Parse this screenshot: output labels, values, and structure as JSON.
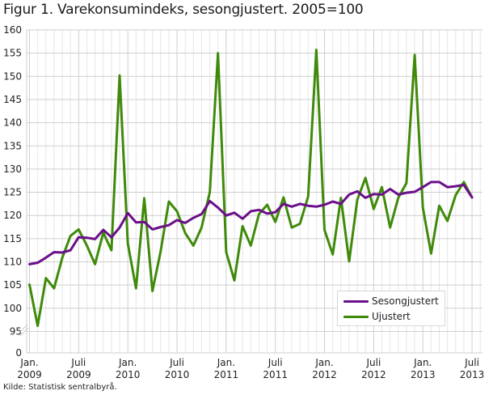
{
  "title": "Figur 1. Varekonsumindeks, sesongjustert. 2005=100",
  "source": "Kilde: Statistisk sentralbyrå.",
  "colors": {
    "sesongjustert": "#6b0f8a",
    "ujustert": "#3f8a0a",
    "grid_major": "#cfcfcf",
    "grid_minor": "#e6e6e6"
  },
  "legend": {
    "items": [
      {
        "label": "Sesongjustert",
        "color": "#6b0f8a"
      },
      {
        "label": "Ujustert",
        "color": "#3f8a0a"
      }
    ]
  },
  "chart_data": {
    "type": "line",
    "title": "Figur 1. Varekonsumindeks, sesongjustert. 2005=100",
    "xlabel": "",
    "ylabel": "",
    "ylim": [
      0,
      160
    ],
    "y_axis_break": [
      0,
      95
    ],
    "yticks": [
      0,
      95,
      100,
      105,
      110,
      115,
      120,
      125,
      130,
      135,
      140,
      145,
      150,
      155,
      160
    ],
    "x_tick_labels": [
      {
        "index": 0,
        "line1": "Jan.",
        "line2": "2009"
      },
      {
        "index": 6,
        "line1": "Juli",
        "line2": "2009"
      },
      {
        "index": 12,
        "line1": "Jan.",
        "line2": "2010"
      },
      {
        "index": 18,
        "line1": "Juli",
        "line2": "2010"
      },
      {
        "index": 24,
        "line1": "Jan.",
        "line2": "2011"
      },
      {
        "index": 30,
        "line1": "Juli",
        "line2": "2011"
      },
      {
        "index": 36,
        "line1": "Jan.",
        "line2": "2012"
      },
      {
        "index": 42,
        "line1": "Juli",
        "line2": "2012"
      },
      {
        "index": 48,
        "line1": "Jan.",
        "line2": "2013"
      },
      {
        "index": 54,
        "line1": "Juli",
        "line2": "2013"
      }
    ],
    "grid": true,
    "legend_position": "lower right",
    "x": [
      "2009-01",
      "2009-02",
      "2009-03",
      "2009-04",
      "2009-05",
      "2009-06",
      "2009-07",
      "2009-08",
      "2009-09",
      "2009-10",
      "2009-11",
      "2009-12",
      "2010-01",
      "2010-02",
      "2010-03",
      "2010-04",
      "2010-05",
      "2010-06",
      "2010-07",
      "2010-08",
      "2010-09",
      "2010-10",
      "2010-11",
      "2010-12",
      "2011-01",
      "2011-02",
      "2011-03",
      "2011-04",
      "2011-05",
      "2011-06",
      "2011-07",
      "2011-08",
      "2011-09",
      "2011-10",
      "2011-11",
      "2011-12",
      "2012-01",
      "2012-02",
      "2012-03",
      "2012-04",
      "2012-05",
      "2012-06",
      "2012-07",
      "2012-08",
      "2012-09",
      "2012-10",
      "2012-11",
      "2012-12",
      "2013-01",
      "2013-02",
      "2013-03",
      "2013-04",
      "2013-05",
      "2013-06",
      "2013-07"
    ],
    "series": [
      {
        "name": "Sesongjustert",
        "color": "#6b0f8a",
        "values": [
          109.5,
          109.8,
          110.9,
          112.1,
          112.0,
          112.5,
          115.3,
          115.2,
          114.9,
          116.9,
          115.3,
          117.4,
          120.5,
          118.5,
          118.6,
          117.0,
          117.5,
          117.9,
          119.0,
          118.4,
          119.5,
          120.3,
          123.1,
          121.7,
          120.0,
          120.6,
          119.3,
          120.9,
          121.2,
          120.4,
          120.7,
          122.5,
          121.9,
          122.5,
          122.1,
          121.9,
          122.3,
          123.0,
          122.5,
          124.5,
          125.2,
          123.8,
          124.6,
          124.5,
          125.7,
          124.5,
          124.9,
          125.1,
          126.1,
          127.2,
          127.2,
          126.1,
          126.3,
          126.6,
          123.9
        ]
      },
      {
        "name": "Ujustert",
        "color": "#3f8a0a",
        "values": [
          105.1,
          96.2,
          106.5,
          104.3,
          110.9,
          115.6,
          117.0,
          113.5,
          109.5,
          116.3,
          112.5,
          150.2,
          113.9,
          104.3,
          123.7,
          103.7,
          112.2,
          123.0,
          120.9,
          116.2,
          113.5,
          117.4,
          125.0,
          155.0,
          112.1,
          106.0,
          117.7,
          113.5,
          120.3,
          122.3,
          118.6,
          123.9,
          117.4,
          118.2,
          124.1,
          155.7,
          116.9,
          111.6,
          123.8,
          110.1,
          123.4,
          128.1,
          121.4,
          126.1,
          117.4,
          123.8,
          127.0,
          154.6,
          121.7,
          111.8,
          122.1,
          118.8,
          124.4,
          127.2,
          123.9
        ]
      }
    ]
  }
}
